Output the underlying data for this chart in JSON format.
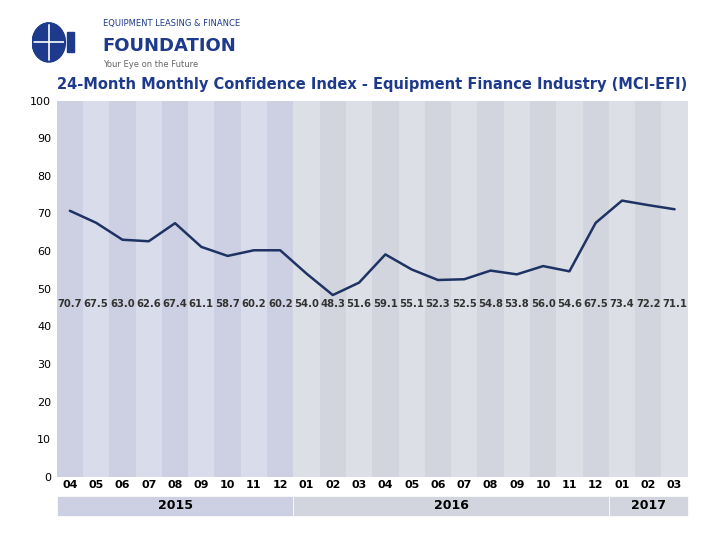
{
  "title": "24-Month Monthly Confidence Index - Equipment Finance Industry (MCI-EFI)",
  "values": [
    70.7,
    67.5,
    63.0,
    62.6,
    67.4,
    61.1,
    58.7,
    60.2,
    60.2,
    54.0,
    48.3,
    51.6,
    59.1,
    55.1,
    52.3,
    52.5,
    54.8,
    53.8,
    56.0,
    54.6,
    67.5,
    73.4,
    72.2,
    71.1
  ],
  "month_labels": [
    "04",
    "05",
    "06",
    "07",
    "08",
    "09",
    "10",
    "11",
    "12",
    "01",
    "02",
    "03",
    "04",
    "05",
    "06",
    "07",
    "08",
    "09",
    "10",
    "11",
    "12",
    "01",
    "02",
    "03"
  ],
  "year_groups": [
    {
      "label": "2015",
      "start": 0,
      "end": 8
    },
    {
      "label": "2016",
      "start": 9,
      "end": 20
    },
    {
      "label": "2017",
      "start": 21,
      "end": 23
    }
  ],
  "ylim": [
    0,
    100
  ],
  "yticks": [
    0,
    10,
    20,
    30,
    40,
    50,
    60,
    70,
    80,
    90,
    100
  ],
  "line_color": "#1e3264",
  "line_width": 1.8,
  "bg_color": "#ffffff",
  "band_colors_2015": [
    "#c8cce0",
    "#d8dbe8"
  ],
  "band_colors_2016": [
    "#d2d4dc",
    "#dcdde4"
  ],
  "band_colors_2017": [
    "#d2d4dc",
    "#dcdde4"
  ],
  "year_band_bg": [
    "#c8cce0",
    "#d2d4dc",
    "#d8dae4"
  ],
  "title_color": "#1e3a8c",
  "title_fontsize": 10.5,
  "value_label_color": "#333333",
  "value_label_fontsize": 7.2,
  "axis_label_fontsize": 8,
  "year_label_fontsize": 9
}
